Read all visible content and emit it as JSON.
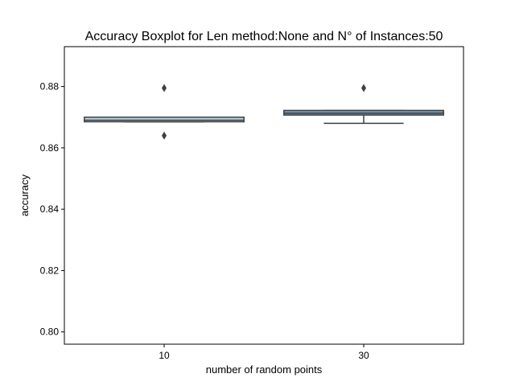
{
  "chart_data": {
    "type": "boxplot",
    "title": "Accuracy Boxplot for Len method:None and N° of Instances:50",
    "xlabel": "number of random points",
    "ylabel": "accuracy",
    "categories": [
      "10",
      "30"
    ],
    "ylim": [
      0.796,
      0.893
    ],
    "yticks": [
      0.8,
      0.82,
      0.84,
      0.86,
      0.88
    ],
    "ytick_labels": [
      "0.80",
      "0.82",
      "0.84",
      "0.86",
      "0.88"
    ],
    "grid": false,
    "boxes": [
      {
        "category": "10",
        "whisker_low": 0.8685,
        "q1": 0.8685,
        "median": 0.869,
        "q3": 0.87,
        "whisker_high": 0.87,
        "outliers": [
          0.8795,
          0.864
        ]
      },
      {
        "category": "30",
        "whisker_low": 0.868,
        "q1": 0.8707,
        "median": 0.8713,
        "q3": 0.8722,
        "whisker_high": 0.8722,
        "outliers": [
          0.8795
        ]
      }
    ],
    "colors": {
      "box_fill": [
        "#b9d3e4",
        "#7296b8"
      ],
      "line": "#3f3f3f"
    }
  }
}
